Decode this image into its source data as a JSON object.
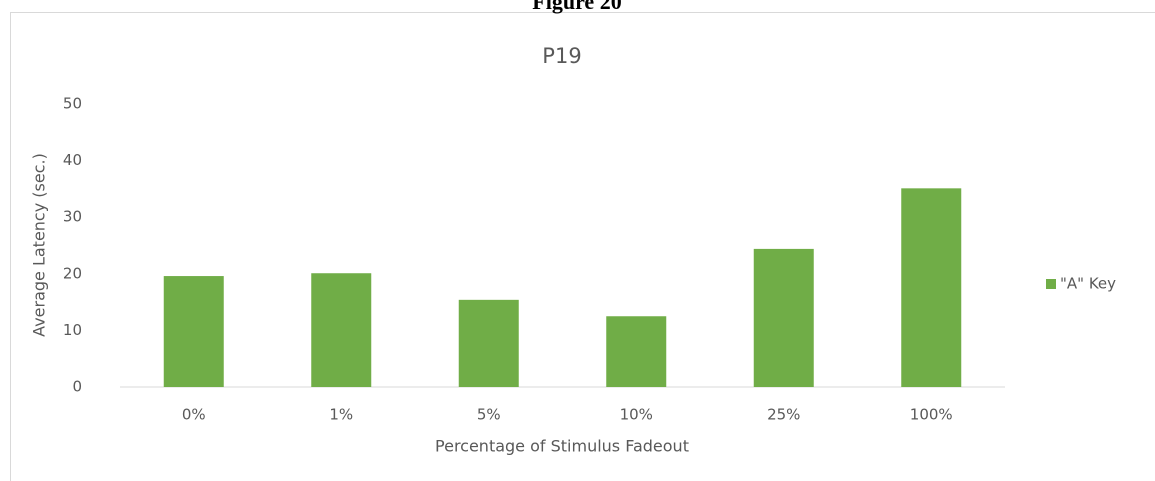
{
  "chart_data": {
    "type": "bar",
    "figure_title": "Figure 20",
    "title": "P19",
    "x_label": "Percentage of Stimulus Fadeout",
    "y_label": "Average Latency (sec.)",
    "categories": [
      "0%",
      "1%",
      "5%",
      "10%",
      "25%",
      "100%"
    ],
    "series": [
      {
        "name": "\"A\" Key",
        "color": "#70ad47",
        "values": [
          19.6,
          20.1,
          15.4,
          12.5,
          24.4,
          35.1
        ]
      }
    ],
    "ylim": [
      0,
      50
    ],
    "yticks": [
      0,
      10,
      20,
      30,
      40,
      50
    ],
    "grid": false,
    "legend": "right"
  }
}
